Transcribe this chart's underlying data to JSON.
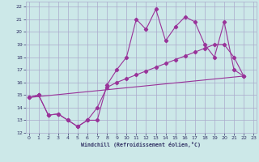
{
  "xlabel": "Windchill (Refroidissement éolien,°C)",
  "background_color": "#cce8e8",
  "grid_color": "#aaaacc",
  "line_color": "#993399",
  "xlim": [
    -0.3,
    23.3
  ],
  "ylim": [
    12,
    22.4
  ],
  "xticks": [
    0,
    1,
    2,
    3,
    4,
    5,
    6,
    7,
    8,
    9,
    10,
    11,
    12,
    13,
    14,
    15,
    16,
    17,
    18,
    19,
    20,
    21,
    22,
    23
  ],
  "yticks": [
    12,
    13,
    14,
    15,
    16,
    17,
    18,
    19,
    20,
    21,
    22
  ],
  "series1_x": [
    0,
    1,
    2,
    3,
    4,
    5,
    6,
    7,
    8,
    9,
    10,
    11,
    12,
    13,
    14,
    15,
    16,
    17,
    18,
    19,
    20,
    21,
    22
  ],
  "series1_y": [
    14.8,
    15.0,
    13.4,
    13.5,
    13.0,
    12.5,
    13.0,
    13.0,
    15.8,
    17.0,
    18.0,
    21.0,
    20.2,
    21.8,
    19.3,
    20.4,
    21.2,
    20.8,
    19.0,
    18.0,
    20.8,
    17.0,
    16.5
  ],
  "series2_x": [
    0,
    1,
    2,
    3,
    4,
    5,
    6,
    7,
    8,
    9,
    10,
    11,
    12,
    13,
    14,
    15,
    16,
    17,
    18,
    19,
    20,
    21,
    22
  ],
  "series2_y": [
    14.8,
    15.0,
    13.4,
    13.5,
    13.0,
    12.5,
    13.0,
    14.0,
    15.6,
    16.0,
    16.3,
    16.6,
    16.9,
    17.2,
    17.5,
    17.8,
    18.1,
    18.4,
    18.7,
    19.0,
    19.0,
    18.0,
    16.5
  ],
  "series3_x": [
    0,
    22
  ],
  "series3_y": [
    14.8,
    16.5
  ]
}
